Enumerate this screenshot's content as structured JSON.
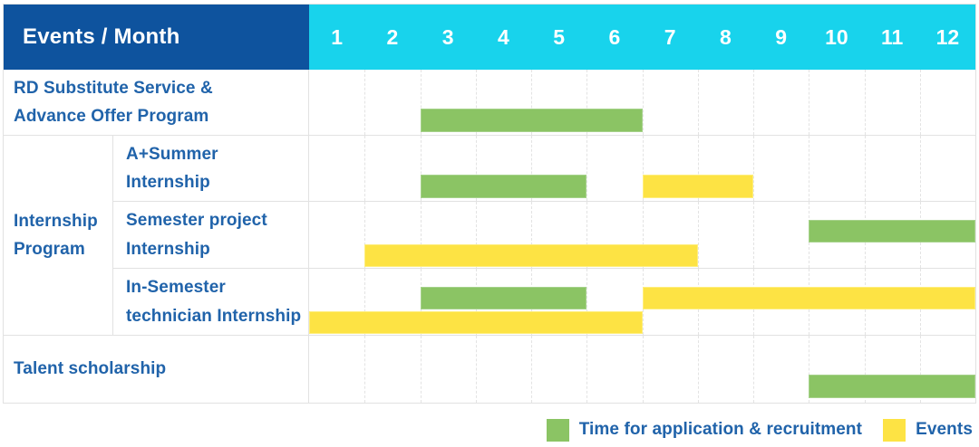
{
  "header": {
    "title": "Events / Month",
    "months": [
      "1",
      "2",
      "3",
      "4",
      "5",
      "6",
      "7",
      "8",
      "9",
      "10",
      "11",
      "12"
    ]
  },
  "colors": {
    "header_bg": "#0e539e",
    "months_bg": "#18d3ec",
    "label_text": "#2063aa",
    "application": "#8bc464",
    "application_border": "#a6d28b",
    "events": "#fde344",
    "events_border": "#feee7d",
    "border": "#e2e2e2",
    "grid": "#e3e3e3"
  },
  "legend": [
    {
      "label": "Time for application & recruitment",
      "key": "application"
    },
    {
      "label": "Events",
      "key": "events"
    }
  ],
  "chart_data": {
    "type": "table",
    "subtype": "gantt-schedule",
    "x_unit": "month",
    "x_range": [
      1,
      12
    ],
    "series_legend": {
      "application": "Time for application & recruitment",
      "events": "Events"
    },
    "rows": [
      {
        "label": "RD Substitute Service &\nAdvance Offer Program",
        "group": null,
        "bars": [
          {
            "type": "application",
            "start_month": 3,
            "end_month": 6,
            "line": "single"
          }
        ]
      },
      {
        "label": "A+Summer\nInternship",
        "group": "Internship\nProgram",
        "bars": [
          {
            "type": "application",
            "start_month": 3,
            "end_month": 5,
            "line": "single"
          },
          {
            "type": "events",
            "start_month": 7,
            "end_month": 8,
            "line": "single"
          }
        ]
      },
      {
        "label": "Semester project\nInternship",
        "group": "Internship\nProgram",
        "bars": [
          {
            "type": "application",
            "start_month": 10,
            "end_month": 12,
            "line": "top"
          },
          {
            "type": "events",
            "start_month": 2,
            "end_month": 7,
            "line": "bottom"
          }
        ]
      },
      {
        "label": "In-Semester\ntechnician Internship",
        "group": "Internship\nProgram",
        "bars": [
          {
            "type": "application",
            "start_month": 3,
            "end_month": 5,
            "line": "top"
          },
          {
            "type": "events",
            "start_month": 7,
            "end_month": 12,
            "line": "top"
          },
          {
            "type": "events",
            "start_month": 1,
            "end_month": 6,
            "line": "bottom"
          }
        ]
      },
      {
        "label": "Talent scholarship",
        "group": null,
        "bars": [
          {
            "type": "application",
            "start_month": 10,
            "end_month": 12,
            "line": "single"
          }
        ]
      }
    ]
  }
}
